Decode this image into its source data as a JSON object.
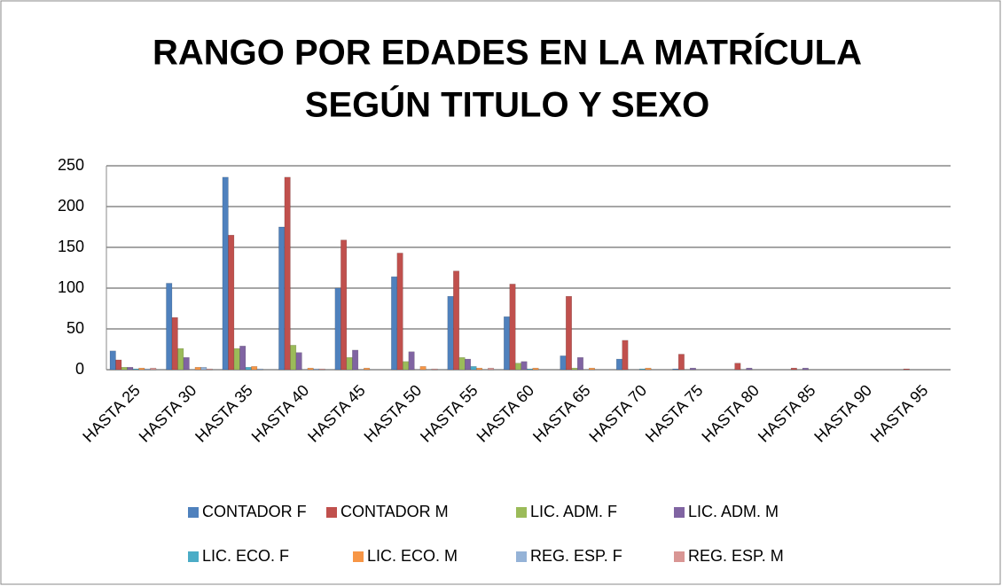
{
  "chart_data": {
    "type": "bar",
    "title": [
      "RANGO POR EDADES EN LA MATRÍCULA",
      "SEGÚN TITULO Y SEXO"
    ],
    "categories": [
      "HASTA 25",
      "HASTA 30",
      "HASTA 35",
      "HASTA 40",
      "HASTA 45",
      "HASTA 50",
      "HASTA 55",
      "HASTA 60",
      "HASTA 65",
      "HASTA 70",
      "HASTA 75",
      "HASTA 80",
      "HASTA 85",
      "HASTA 90",
      "HASTA 95"
    ],
    "series": [
      {
        "name": "CONTADOR F",
        "color": "#4F81BD",
        "values": [
          23,
          106,
          236,
          175,
          100,
          114,
          90,
          65,
          17,
          13,
          1,
          0,
          0,
          0,
          0
        ]
      },
      {
        "name": "CONTADOR M",
        "color": "#C0504D",
        "values": [
          12,
          64,
          165,
          236,
          159,
          143,
          121,
          105,
          90,
          36,
          19,
          8,
          2,
          0,
          1
        ]
      },
      {
        "name": "LIC. ADM. F",
        "color": "#9BBB59",
        "values": [
          3,
          26,
          26,
          30,
          15,
          10,
          15,
          8,
          2,
          0,
          0,
          0,
          0,
          0,
          0
        ]
      },
      {
        "name": "LIC. ADM. M",
        "color": "#8064A2",
        "values": [
          3,
          15,
          29,
          21,
          24,
          22,
          13,
          10,
          15,
          0,
          2,
          2,
          2,
          0,
          0
        ]
      },
      {
        "name": "LIC. ECO. F",
        "color": "#4BACC6",
        "values": [
          1,
          0,
          3,
          0,
          0,
          0,
          4,
          1,
          0,
          1,
          0,
          0,
          0,
          0,
          0
        ]
      },
      {
        "name": "LIC. ECO. M",
        "color": "#F79646",
        "values": [
          2,
          3,
          4,
          2,
          2,
          4,
          2,
          2,
          2,
          2,
          0,
          0,
          0,
          0,
          0
        ]
      },
      {
        "name": "REG. ESP. F",
        "color": "#95B3D7",
        "values": [
          1,
          3,
          1,
          1,
          0,
          0,
          0,
          0,
          0,
          0,
          0,
          0,
          0,
          0,
          0
        ]
      },
      {
        "name": "REG. ESP. M",
        "color": "#D99694",
        "values": [
          2,
          1,
          0,
          1,
          0,
          1,
          2,
          0,
          0,
          0,
          0,
          0,
          0,
          0,
          0
        ]
      }
    ],
    "ylim": [
      0,
      250
    ],
    "yticks": [
      0,
      50,
      100,
      150,
      200,
      250
    ],
    "grid": true
  }
}
